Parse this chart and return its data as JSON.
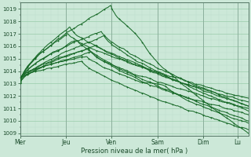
{
  "background_color": "#cce8d8",
  "grid_major_color": "#99ccaa",
  "grid_minor_color": "#bbddcc",
  "line_color": "#1a6b2a",
  "xlabel": "Pression niveau de la mer( hPa )",
  "xlabels": [
    "Mer",
    "Jeu",
    "Ven",
    "Sam",
    "Dim",
    "Lu"
  ],
  "xtick_positions": [
    0,
    48,
    96,
    144,
    192,
    228
  ],
  "ylim": [
    1008.8,
    1019.5
  ],
  "yticks": [
    1009,
    1010,
    1011,
    1012,
    1013,
    1014,
    1015,
    1016,
    1017,
    1018,
    1019
  ],
  "total_points": 240,
  "lw": 0.75,
  "marker_every": 8,
  "marker_size": 1.5
}
